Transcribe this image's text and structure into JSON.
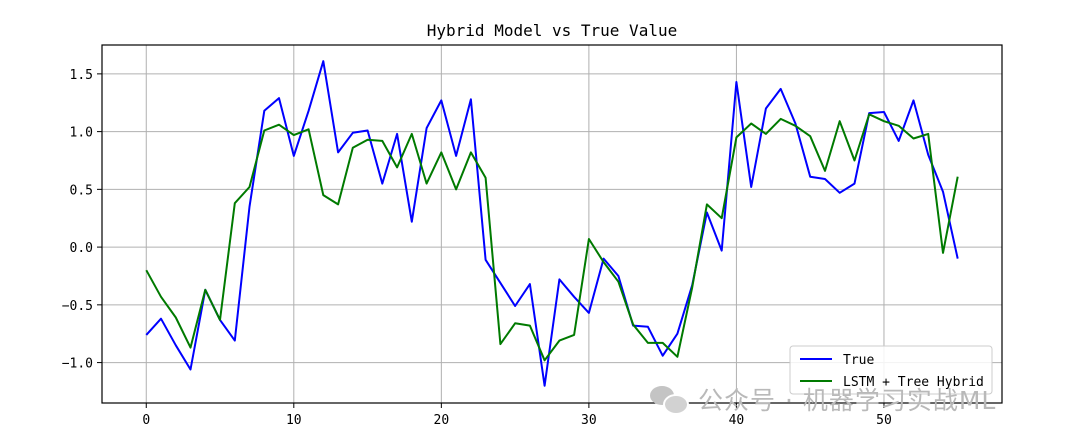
{
  "colors": {
    "true_line": "#0000ff",
    "hybrid_line": "#007a00",
    "grid": "#b0b0b0",
    "axes": "#000000",
    "watermark": "#b9b9b9"
  },
  "watermark": {
    "icon": "wechat-icon",
    "text": "公众号 · 机器学习实战ML"
  },
  "chart_data": {
    "type": "line",
    "title": "Hybrid Model vs True Value",
    "xlabel": "",
    "ylabel": "",
    "xlim": [
      -3,
      58
    ],
    "ylim": [
      -1.35,
      1.75
    ],
    "grid": true,
    "legend_position": "lower-right",
    "x_ticks": [
      0,
      10,
      20,
      30,
      40,
      50
    ],
    "y_ticks": [
      -1.0,
      -0.5,
      0.0,
      0.5,
      1.0,
      1.5
    ],
    "x_tick_labels": [
      "0",
      "10",
      "20",
      "30",
      "40",
      "50"
    ],
    "y_tick_labels": [
      "−1.0",
      "−0.5",
      "0.0",
      "0.5",
      "1.0",
      "1.5"
    ],
    "x": [
      0,
      1,
      2,
      3,
      4,
      5,
      6,
      7,
      8,
      9,
      10,
      11,
      12,
      13,
      14,
      15,
      16,
      17,
      18,
      19,
      20,
      21,
      22,
      23,
      24,
      25,
      26,
      27,
      28,
      29,
      30,
      31,
      32,
      33,
      34,
      35,
      36,
      37,
      38,
      39,
      40,
      41,
      42,
      43,
      44,
      45,
      46,
      47,
      48,
      49,
      50,
      51,
      52,
      53,
      54,
      55
    ],
    "series": [
      {
        "name": "True",
        "color": "#0000ff",
        "values": [
          -0.76,
          -0.62,
          -0.85,
          -1.06,
          -0.37,
          -0.63,
          -0.81,
          0.35,
          1.18,
          1.29,
          0.79,
          1.18,
          1.61,
          0.82,
          0.99,
          1.01,
          0.55,
          0.98,
          0.22,
          1.03,
          1.27,
          0.79,
          1.28,
          -0.11,
          -0.31,
          -0.51,
          -0.32,
          -1.2,
          -0.28,
          -0.43,
          -0.57,
          -0.1,
          -0.25,
          -0.68,
          -0.69,
          -0.94,
          -0.75,
          -0.33,
          0.3,
          -0.03,
          1.43,
          0.52,
          1.2,
          1.37,
          1.07,
          0.61,
          0.59,
          0.47,
          0.55,
          1.16,
          1.17,
          0.92,
          1.27,
          0.8,
          0.48,
          -0.1
        ]
      },
      {
        "name": "LSTM + Tree Hybrid",
        "color": "#007a00",
        "values": [
          -0.2,
          -0.43,
          -0.61,
          -0.87,
          -0.37,
          -0.63,
          0.38,
          0.52,
          1.01,
          1.06,
          0.97,
          1.02,
          0.45,
          0.37,
          0.86,
          0.93,
          0.92,
          0.69,
          0.98,
          0.55,
          0.82,
          0.5,
          0.82,
          0.6,
          -0.84,
          -0.66,
          -0.68,
          -0.98,
          -0.81,
          -0.76,
          0.07,
          -0.13,
          -0.3,
          -0.67,
          -0.83,
          -0.83,
          -0.95,
          -0.35,
          0.37,
          0.25,
          0.95,
          1.07,
          0.98,
          1.11,
          1.05,
          0.96,
          0.66,
          1.09,
          0.75,
          1.15,
          1.09,
          1.05,
          0.94,
          0.98,
          -0.05,
          0.61
        ]
      }
    ]
  }
}
